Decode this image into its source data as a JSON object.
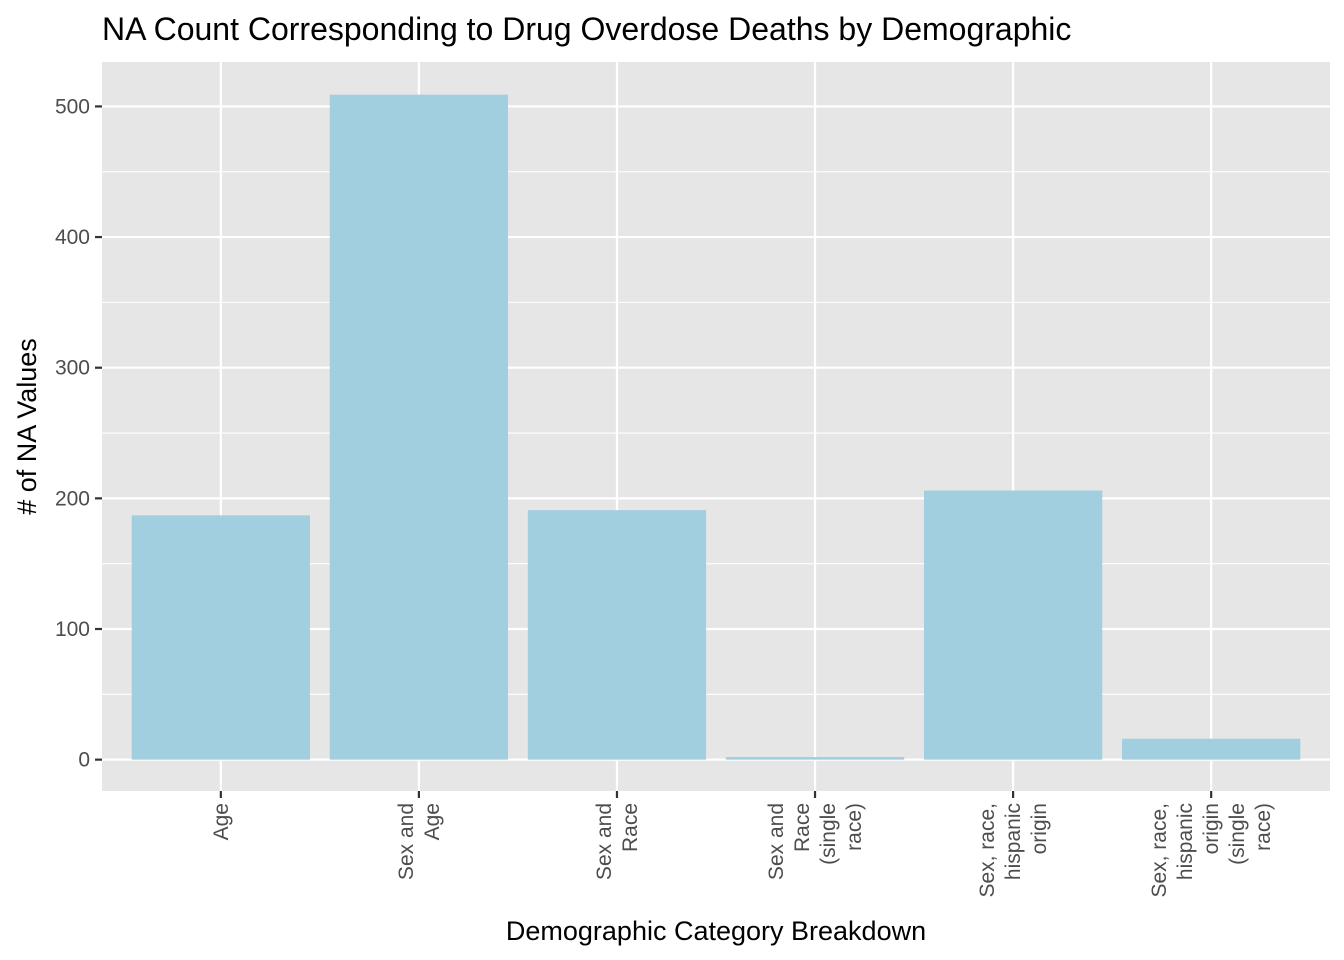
{
  "chart_data": {
    "type": "bar",
    "title": "NA Count Corresponding to Drug Overdose Deaths by Demographic",
    "xlabel": "Demographic Category Breakdown",
    "ylabel": "# of NA Values",
    "categories": [
      [
        "Age"
      ],
      [
        "Sex and",
        "Age"
      ],
      [
        "Sex and",
        "Race"
      ],
      [
        "Sex and",
        "Race",
        "(single",
        "race)"
      ],
      [
        "Sex, race,",
        "hispanic",
        "origin"
      ],
      [
        "Sex, race,",
        "hispanic",
        "origin",
        "(single",
        "race)"
      ]
    ],
    "values": [
      187,
      509,
      191,
      2,
      206,
      16
    ],
    "ylim": [
      -24,
      534
    ],
    "yticks": [
      0,
      100,
      200,
      300,
      400,
      500
    ],
    "grid": true,
    "legend": "none",
    "colors": {
      "bar": "#a1cfe0",
      "panel": "#e6e6e6",
      "grid": "#ffffff",
      "text": "#000000",
      "tick_text": "#4d4d4d",
      "tick_mark": "#333333"
    }
  }
}
